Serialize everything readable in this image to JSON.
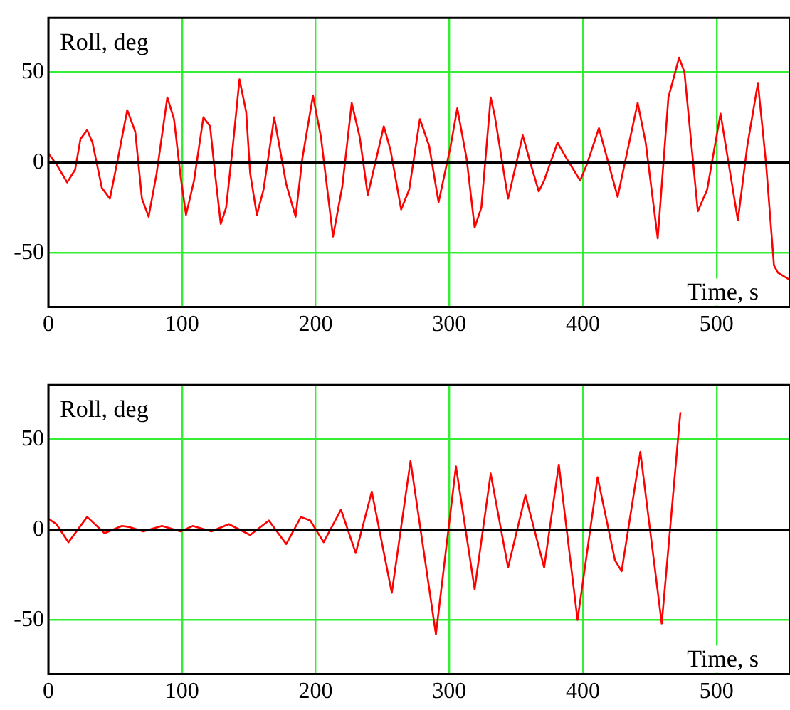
{
  "chart_data": [
    {
      "type": "line",
      "xlabel": "Time, s",
      "ylabel": "Roll, deg",
      "xlim": [
        0,
        555
      ],
      "xticks": [
        0,
        100,
        200,
        300,
        400,
        500
      ],
      "ylim": [
        -80,
        80
      ],
      "yticks": [
        -50,
        0,
        50
      ],
      "grid": true,
      "legend": false,
      "marker": "none",
      "line_style": "solid",
      "ref_lines": [
        {
          "axis": "y",
          "value": 0,
          "color": "#000000"
        }
      ],
      "series": [
        {
          "color": "#ff0000",
          "x": [
            0,
            6,
            14,
            20,
            24,
            29,
            33,
            40,
            46,
            52,
            59,
            65,
            70,
            75,
            81,
            89,
            94,
            99,
            103,
            109,
            116,
            121,
            125,
            129,
            133,
            138,
            143,
            148,
            151,
            156,
            161,
            169,
            178,
            185,
            190,
            198,
            204,
            213,
            220,
            227,
            233,
            239,
            251,
            256,
            264,
            270,
            278,
            285,
            292,
            301,
            306,
            313,
            319,
            324,
            331,
            334,
            344,
            355,
            361,
            367,
            371,
            381,
            388,
            398,
            403,
            412,
            426,
            441,
            447,
            456,
            464,
            472,
            476,
            486,
            493,
            503,
            516,
            523,
            531,
            537,
            543,
            546,
            555
          ],
          "values": [
            5,
            -1,
            -11,
            -4,
            13,
            18,
            11,
            -14,
            -20,
            2,
            29,
            17,
            -20,
            -30,
            -6,
            36,
            24,
            -8,
            -29,
            -10,
            25,
            20,
            -8,
            -34,
            -25,
            9,
            46,
            28,
            -6,
            -29,
            -15,
            25,
            -12,
            -30,
            2,
            37,
            14,
            -41,
            -13,
            33,
            14,
            -18,
            20,
            7,
            -26,
            -15,
            24,
            9,
            -22,
            9,
            30,
            2,
            -36,
            -25,
            36,
            26,
            -20,
            15,
            -1,
            -16,
            -10,
            11,
            2,
            -10,
            -1,
            19,
            -19,
            33,
            11,
            -42,
            36,
            58,
            50,
            -27,
            -15,
            27,
            -32,
            9,
            44,
            0,
            -57,
            -61,
            -65
          ]
        }
      ]
    },
    {
      "type": "line",
      "xlabel": "Time, s",
      "ylabel": "Roll, deg",
      "xlim": [
        0,
        555
      ],
      "xticks": [
        0,
        100,
        200,
        300,
        400,
        500
      ],
      "ylim": [
        -80,
        80
      ],
      "yticks": [
        -50,
        0,
        50
      ],
      "grid": true,
      "legend": false,
      "marker": "none",
      "line_style": "solid",
      "ref_lines": [
        {
          "axis": "y",
          "value": 0,
          "color": "#000000"
        }
      ],
      "series": [
        {
          "color": "#ff0000",
          "x": [
            0,
            6,
            15,
            29,
            42,
            55,
            60,
            71,
            85,
            99,
            108,
            122,
            135,
            151,
            165,
            178,
            189,
            196,
            206,
            219,
            230,
            242,
            257,
            271,
            290,
            305,
            319,
            331,
            344,
            357,
            371,
            382,
            396,
            411,
            424,
            429,
            443,
            459,
            472,
            473
          ],
          "values": [
            6,
            3,
            -7,
            7,
            -2,
            2,
            1.5,
            -1,
            2,
            -1,
            2,
            -1,
            3,
            -3,
            5,
            -8,
            7,
            5,
            -7,
            11,
            -13,
            21,
            -35,
            38,
            -58,
            35,
            -33,
            31,
            -21,
            19,
            -21,
            36,
            -50,
            29,
            -17,
            -23,
            43,
            -52,
            57,
            65
          ]
        }
      ]
    }
  ]
}
